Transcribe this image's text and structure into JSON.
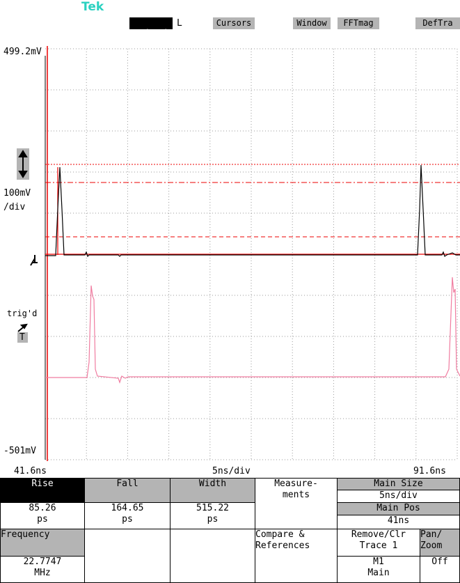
{
  "header": {
    "logo": "Tek",
    "buttons": [
      "L",
      "Cursors",
      "Window",
      "FFTmag",
      "DefTra"
    ]
  },
  "scope": {
    "top_label": "499.2mV",
    "scale": "100mV",
    "scale_unit": "/div",
    "trigger": "trig'd",
    "trigger_source": "T",
    "bottom_label": "-501mV",
    "x_start": "41.6ns",
    "x_scale": "5ns/div",
    "x_end": "91.6ns"
  },
  "menu": {
    "rise": {
      "title": "Rise",
      "value": "85.26",
      "unit": "ps"
    },
    "fall": {
      "title": "Fall",
      "value": "164.65",
      "unit": "ps"
    },
    "width": {
      "title": "Width",
      "value": "515.22",
      "unit": "ps"
    },
    "measurements": [
      "Measure-",
      "ments"
    ],
    "main_size": {
      "title": "Main Size",
      "value": "5ns/div"
    },
    "main_pos": {
      "title": "Main Pos",
      "value": "41ns"
    },
    "frequency": {
      "title": "Frequency",
      "value": "22.7747",
      "unit": "MHz"
    },
    "compare": [
      "Compare &",
      "References"
    ],
    "remove": {
      "title": [
        "Remove/Clr",
        "Trace 1"
      ],
      "value": [
        "M1",
        "Main"
      ]
    },
    "pan": {
      "title": [
        "Pan/",
        "Zoom"
      ],
      "value": "Off"
    }
  }
}
